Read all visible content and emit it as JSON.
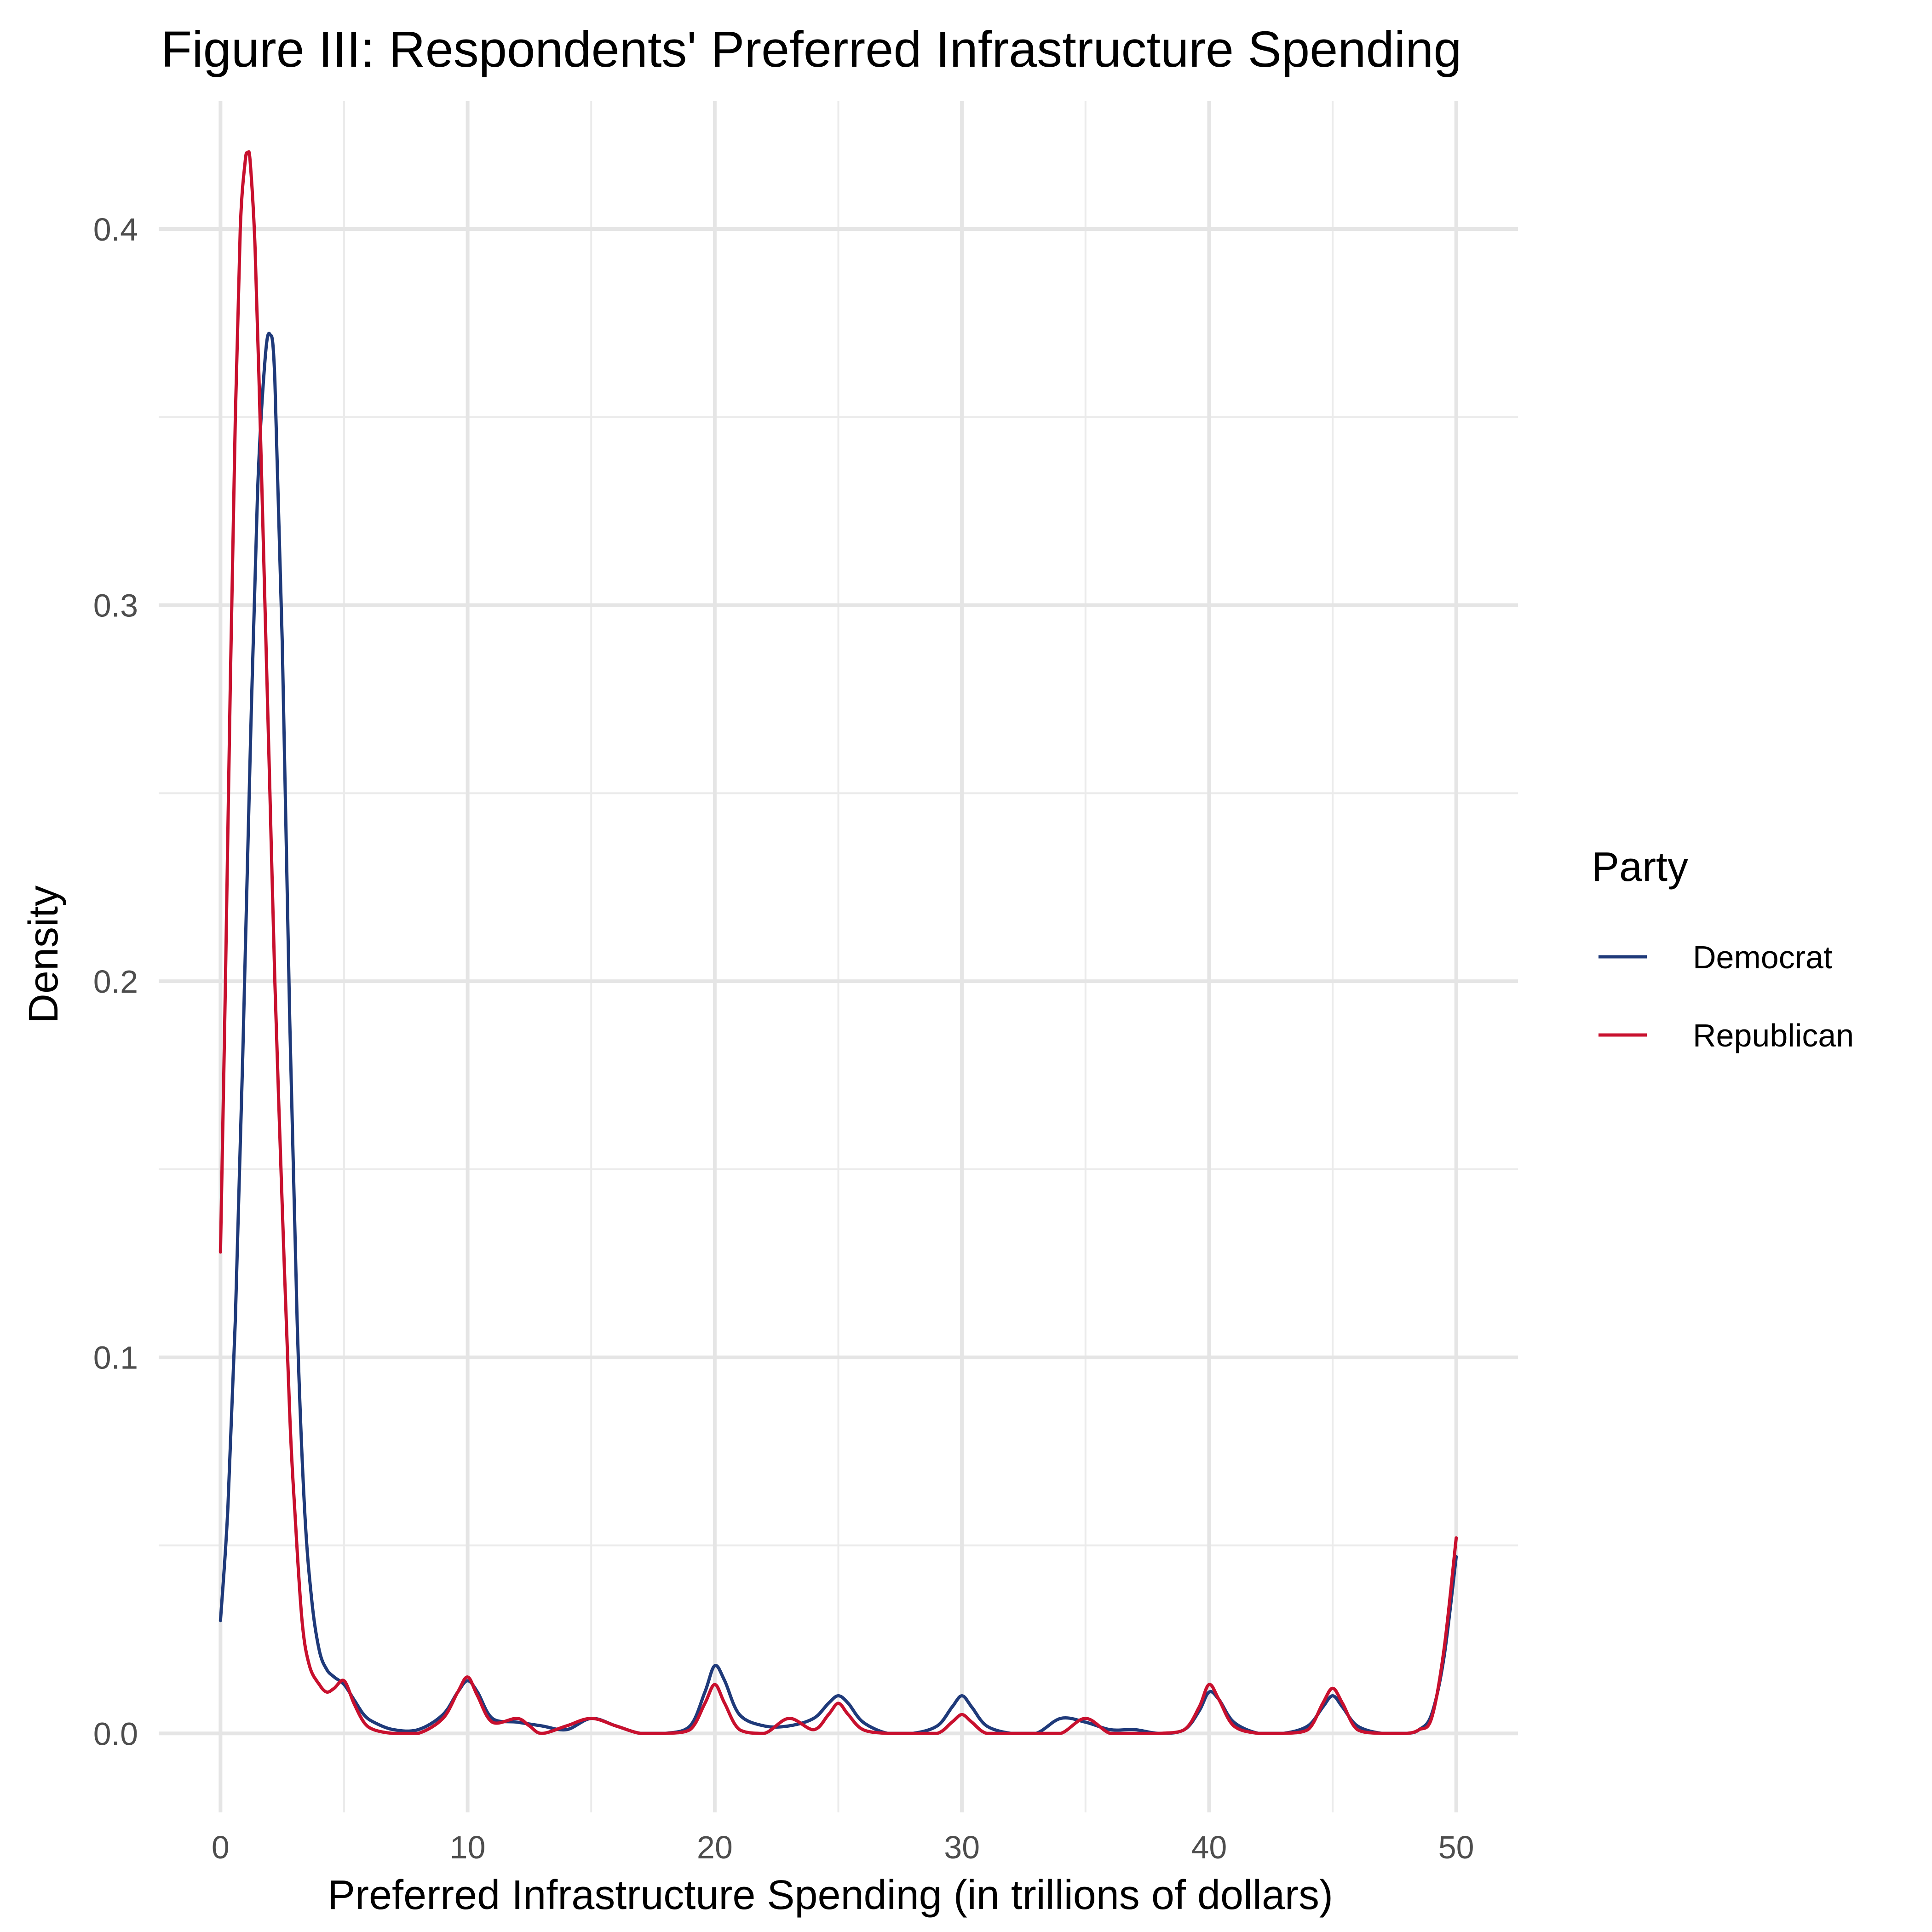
{
  "chart_data": {
    "type": "line",
    "title": "Figure III: Respondents' Preferred Infrastructure Spending",
    "xlabel": "Preferred Infrastructure Spending (in trillions of dollars)",
    "ylabel": "Density",
    "xlim": [
      -2.5,
      52.5
    ],
    "ylim": [
      -0.021,
      0.434
    ],
    "x_ticks": [
      0,
      10,
      20,
      30,
      40,
      50
    ],
    "x_tick_labels": [
      "0",
      "10",
      "20",
      "30",
      "40",
      "50"
    ],
    "x_minor_ticks": [
      5,
      15,
      25,
      35,
      45
    ],
    "y_ticks": [
      0.0,
      0.1,
      0.2,
      0.3,
      0.4
    ],
    "y_tick_labels": [
      "0.0",
      "0.1",
      "0.2",
      "0.3",
      "0.4"
    ],
    "y_minor_ticks": [
      0.05,
      0.15,
      0.25,
      0.35
    ],
    "grid": true,
    "legend": {
      "title": "Party",
      "position": "right"
    },
    "series": [
      {
        "name": "Democrat",
        "color": "#1f3a7a",
        "x": [
          0,
          0.3,
          0.6,
          0.9,
          1.2,
          1.5,
          1.8,
          2.0,
          2.2,
          2.5,
          2.8,
          3.1,
          3.4,
          3.7,
          4.0,
          4.3,
          4.6,
          5.0,
          5.4,
          5.8,
          6.2,
          7.0,
          8.0,
          9.0,
          9.6,
          10.0,
          10.4,
          11.0,
          12.0,
          13.0,
          14.0,
          15.0,
          16.0,
          17.0,
          18.0,
          19.0,
          19.6,
          20.0,
          20.4,
          21.0,
          22.0,
          23.0,
          24.0,
          24.6,
          25.0,
          25.4,
          26.0,
          27.0,
          28.0,
          29.0,
          29.6,
          30.0,
          30.4,
          31.0,
          32.0,
          33.0,
          34.0,
          35.0,
          36.0,
          37.0,
          38.0,
          39.0,
          39.6,
          40.0,
          40.4,
          41.0,
          42.0,
          43.0,
          44.0,
          44.6,
          45.0,
          45.4,
          46.0,
          47.0,
          48.0,
          48.5,
          49.0,
          49.5,
          50.0
        ],
        "values": [
          0.03,
          0.06,
          0.11,
          0.18,
          0.26,
          0.33,
          0.365,
          0.372,
          0.36,
          0.29,
          0.19,
          0.11,
          0.06,
          0.035,
          0.022,
          0.017,
          0.015,
          0.013,
          0.009,
          0.005,
          0.003,
          0.001,
          0.001,
          0.005,
          0.011,
          0.014,
          0.011,
          0.004,
          0.003,
          0.002,
          0.001,
          0.004,
          0.002,
          0.0,
          0.0,
          0.002,
          0.011,
          0.018,
          0.014,
          0.005,
          0.002,
          0.002,
          0.004,
          0.008,
          0.01,
          0.008,
          0.003,
          0.0,
          0.0,
          0.002,
          0.007,
          0.01,
          0.007,
          0.002,
          0.0,
          0.0,
          0.004,
          0.003,
          0.001,
          0.001,
          0.0,
          0.001,
          0.006,
          0.011,
          0.009,
          0.003,
          0.0,
          0.0,
          0.002,
          0.007,
          0.01,
          0.007,
          0.002,
          0.0,
          0.0,
          0.001,
          0.005,
          0.02,
          0.047
        ]
      },
      {
        "name": "Republican",
        "color": "#c8102e",
        "x": [
          0,
          0.2,
          0.4,
          0.6,
          0.8,
          1.0,
          1.1,
          1.2,
          1.4,
          1.6,
          1.8,
          2.0,
          2.2,
          2.5,
          2.8,
          3.0,
          3.3,
          3.6,
          4.0,
          4.3,
          4.6,
          5.0,
          5.4,
          5.8,
          6.2,
          7.0,
          8.0,
          9.0,
          9.6,
          10.0,
          10.4,
          11.0,
          12.0,
          12.5,
          13.0,
          14.0,
          15.0,
          16.0,
          17.0,
          18.0,
          19.0,
          19.6,
          20.0,
          20.4,
          21.0,
          22.0,
          23.0,
          24.0,
          24.6,
          25.0,
          25.4,
          26.0,
          27.0,
          28.0,
          29.0,
          29.6,
          30.0,
          30.4,
          31.0,
          32.0,
          33.0,
          34.0,
          35.0,
          36.0,
          37.0,
          38.0,
          39.0,
          39.6,
          40.0,
          40.4,
          41.0,
          42.0,
          43.0,
          44.0,
          44.6,
          45.0,
          45.4,
          46.0,
          47.0,
          48.0,
          48.5,
          49.0,
          49.5,
          50.0
        ],
        "values": [
          0.128,
          0.2,
          0.28,
          0.35,
          0.4,
          0.418,
          0.42,
          0.418,
          0.395,
          0.35,
          0.3,
          0.25,
          0.2,
          0.14,
          0.085,
          0.06,
          0.03,
          0.018,
          0.013,
          0.011,
          0.012,
          0.014,
          0.008,
          0.003,
          0.001,
          0.0,
          0.0,
          0.004,
          0.011,
          0.015,
          0.01,
          0.003,
          0.004,
          0.002,
          0.0,
          0.002,
          0.004,
          0.002,
          0.0,
          0.0,
          0.001,
          0.008,
          0.013,
          0.008,
          0.001,
          0.0,
          0.004,
          0.001,
          0.005,
          0.008,
          0.005,
          0.001,
          0.0,
          0.0,
          0.0,
          0.003,
          0.005,
          0.003,
          0.0,
          0.0,
          0.0,
          0.0,
          0.004,
          0.0,
          0.0,
          0.0,
          0.001,
          0.007,
          0.013,
          0.009,
          0.002,
          0.0,
          0.0,
          0.001,
          0.008,
          0.012,
          0.008,
          0.001,
          0.0,
          0.0,
          0.001,
          0.004,
          0.022,
          0.052
        ]
      }
    ]
  }
}
